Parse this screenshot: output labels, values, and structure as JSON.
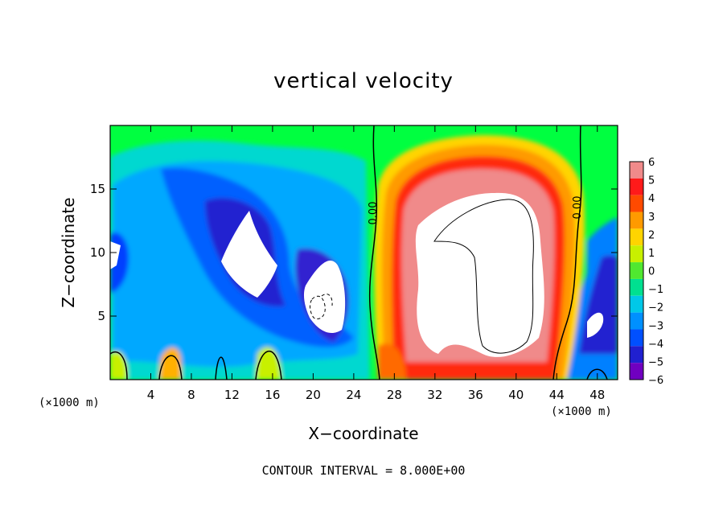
{
  "chart_data": {
    "type": "heatmap",
    "title": "vertical velocity",
    "xlabel": "X−coordinate",
    "ylabel": "Z−coordinate",
    "x_unit": "(×1000 m)",
    "z_unit": "(×1000 m)",
    "xlim": [
      0,
      50
    ],
    "ylim": [
      0,
      20
    ],
    "x_ticks": [
      4,
      8,
      12,
      16,
      20,
      24,
      28,
      32,
      36,
      40,
      44,
      48
    ],
    "y_ticks": [
      5,
      10,
      15
    ],
    "x_tick_labels": [
      "4",
      "8",
      "12",
      "16",
      "20",
      "24",
      "28",
      "32",
      "36",
      "40",
      "44",
      "48"
    ],
    "y_tick_labels": [
      "5",
      "10",
      "15"
    ],
    "colorbar": {
      "min": -6,
      "max": 6,
      "levels": [
        6,
        5,
        4,
        3,
        2,
        1,
        0,
        -1,
        -2,
        -3,
        -4,
        -5,
        -6
      ],
      "labels": [
        "6",
        "5",
        "4",
        "3",
        "2",
        "1",
        "0",
        "−1",
        "−2",
        "−3",
        "−4",
        "−5",
        "−6"
      ],
      "colors": [
        "#f08a8a",
        "#ff1a1a",
        "#ff4a00",
        "#ff9a00",
        "#ffd400",
        "#c8f000",
        "#50e830",
        "#00e090",
        "#00c8e8",
        "#0090ff",
        "#0050ff",
        "#2020d0",
        "#7000c0"
      ]
    },
    "contour_labels": [
      "0.00",
      "0.00"
    ],
    "contour_interval": "CONTOUR INTERVAL = 8.000E+00",
    "regions": [
      {
        "x": [
          0,
          26
        ],
        "z": [
          0,
          20
        ],
        "sign": "negative"
      },
      {
        "x": [
          27,
          44
        ],
        "z": [
          0,
          17
        ],
        "sign": "positive",
        "peak_x": 36,
        "peak_z": 9
      },
      {
        "x": [
          45,
          50
        ],
        "z": [
          0,
          20
        ],
        "sign": "negative"
      }
    ]
  }
}
